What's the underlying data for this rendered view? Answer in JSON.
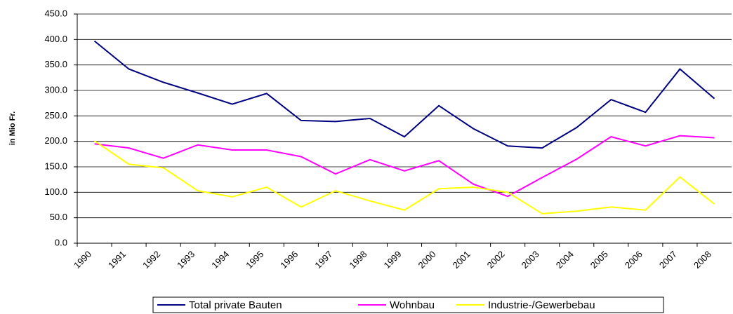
{
  "chart_data": {
    "type": "line",
    "y_label": "in Mio Fr.",
    "categories": [
      "1990",
      "1991",
      "1992",
      "1993",
      "1994",
      "1995",
      "1996",
      "1997",
      "1998",
      "1999",
      "2000",
      "2001",
      "2002",
      "2003",
      "2004",
      "2005",
      "2006",
      "2007",
      "2008"
    ],
    "series": [
      {
        "name": "Total private Bauten",
        "color": "#000080",
        "values": [
          397,
          342,
          316,
          295,
          273,
          294,
          241,
          239,
          245,
          209,
          270,
          225,
          191,
          187,
          227,
          282,
          257,
          342,
          284
        ]
      },
      {
        "name": "Wohnbau",
        "color": "#ff00ff",
        "values": [
          195,
          187,
          167,
          193,
          183,
          183,
          170,
          136,
          164,
          142,
          162,
          116,
          92,
          129,
          165,
          209,
          191,
          211,
          207
        ]
      },
      {
        "name": "Industrie-/Gewerbebau",
        "color": "#ffff00",
        "values": [
          201,
          155,
          148,
          103,
          91,
          110,
          71,
          103,
          83,
          65,
          107,
          110,
          100,
          58,
          63,
          71,
          65,
          130,
          77
        ]
      }
    ],
    "ylim": [
      0,
      450
    ],
    "yticks": [
      {
        "value": 0,
        "label": "0.0"
      },
      {
        "value": 50,
        "label": "50.0"
      },
      {
        "value": 100,
        "label": "100.0"
      },
      {
        "value": 150,
        "label": "150.0"
      },
      {
        "value": 200,
        "label": "200.0"
      },
      {
        "value": 250,
        "label": "250.0"
      },
      {
        "value": 300,
        "label": "300.0"
      },
      {
        "value": 350,
        "label": "350.0"
      },
      {
        "value": 400,
        "label": "400.0"
      },
      {
        "value": 450,
        "label": "450.0"
      }
    ],
    "grid": true,
    "legend": "bottom"
  }
}
